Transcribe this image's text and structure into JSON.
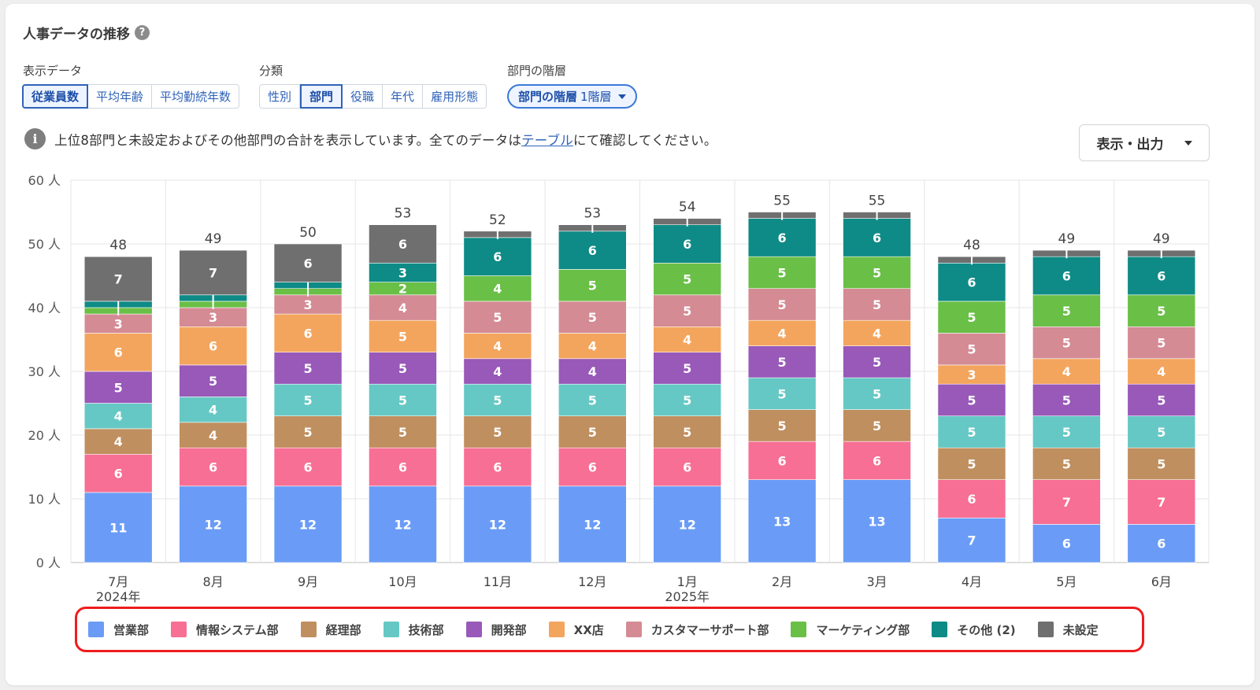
{
  "header": {
    "title": "人事データの推移",
    "help_icon": "?"
  },
  "controls": {
    "display_label": "表示データ",
    "display_options": [
      "従業員数",
      "平均年齢",
      "平均勤続年数"
    ],
    "display_selected": 0,
    "category_label": "分類",
    "category_options": [
      "性別",
      "部門",
      "役職",
      "年代",
      "雇用形態"
    ],
    "category_selected": 1,
    "hierarchy_label": "部門の階層",
    "hierarchy_button": "部門の階層",
    "hierarchy_value": "1階層"
  },
  "info": {
    "icon": "i",
    "text_before": "上位8部門と未設定およびその他部門の合計を表示しています。全てのデータは",
    "link": "テーブル",
    "text_after": "にて確認してください。"
  },
  "export_button": {
    "label": "表示・出力"
  },
  "colors": {
    "営業部": "#6a9cf7",
    "情報システム部": "#f76f94",
    "経理部": "#c08f5f",
    "技術部": "#66c8c4",
    "開発部": "#9859b8",
    "XX店": "#f3a55e",
    "カスタマーサポート部": "#d48b94",
    "マーケティング部": "#6abf47",
    "その他": "#0e8b86",
    "未設定": "#6f6f6f"
  },
  "chart_data": {
    "type": "bar",
    "stacked": true,
    "categories": [
      "7月",
      "8月",
      "9月",
      "10月",
      "11月",
      "12月",
      "1月",
      "2月",
      "3月",
      "4月",
      "5月",
      "6月"
    ],
    "category_sublabels": [
      "2024年",
      "",
      "",
      "",
      "",
      "",
      "2025年",
      "",
      "",
      "",
      "",
      ""
    ],
    "series": [
      {
        "name": "営業部",
        "values": [
          11,
          12,
          12,
          12,
          12,
          12,
          12,
          13,
          13,
          7,
          6,
          6
        ]
      },
      {
        "name": "情報システム部",
        "values": [
          6,
          6,
          6,
          6,
          6,
          6,
          6,
          6,
          6,
          6,
          7,
          7
        ]
      },
      {
        "name": "経理部",
        "values": [
          4,
          4,
          5,
          5,
          5,
          5,
          5,
          5,
          5,
          5,
          5,
          5
        ]
      },
      {
        "name": "技術部",
        "values": [
          4,
          4,
          5,
          5,
          5,
          5,
          5,
          5,
          5,
          5,
          5,
          5
        ]
      },
      {
        "name": "開発部",
        "values": [
          5,
          5,
          5,
          5,
          4,
          4,
          5,
          5,
          5,
          5,
          5,
          5
        ]
      },
      {
        "name": "XX店",
        "values": [
          6,
          6,
          6,
          5,
          4,
          4,
          4,
          4,
          4,
          3,
          4,
          4
        ]
      },
      {
        "name": "カスタマーサポート部",
        "values": [
          3,
          3,
          3,
          4,
          5,
          5,
          5,
          5,
          5,
          5,
          5,
          5
        ]
      },
      {
        "name": "マーケティング部",
        "values": [
          1,
          1,
          1,
          2,
          4,
          5,
          5,
          5,
          5,
          5,
          5,
          5
        ]
      },
      {
        "name": "その他 (2)",
        "values": [
          1,
          1,
          1,
          3,
          6,
          6,
          6,
          6,
          6,
          6,
          6,
          6
        ]
      },
      {
        "name": "未設定",
        "values": [
          7,
          7,
          6,
          6,
          1,
          1,
          1,
          1,
          1,
          1,
          1,
          1
        ]
      }
    ],
    "totals": [
      48,
      49,
      50,
      53,
      52,
      53,
      54,
      55,
      55,
      48,
      49,
      49
    ],
    "y_ticks": [
      0,
      10,
      20,
      30,
      40,
      50,
      60
    ],
    "y_unit": "人",
    "ylim": [
      0,
      60
    ],
    "grid": true,
    "legend": "bottom",
    "legend_labels": [
      "営業部",
      "情報システム部",
      "経理部",
      "技術部",
      "開発部",
      "XX店",
      "カスタマーサポート部",
      "マーケティング部",
      "その他 (2)",
      "未設定"
    ]
  }
}
